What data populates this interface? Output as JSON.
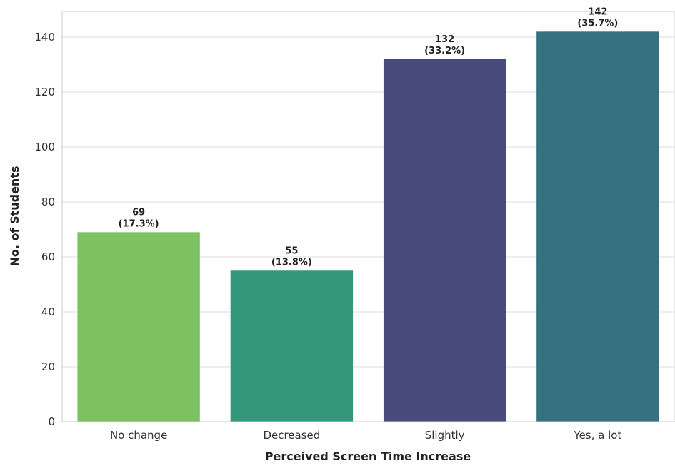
{
  "chart_data": {
    "type": "bar",
    "title": "",
    "xlabel": "Perceived Screen Time Increase",
    "ylabel": "No. of Students",
    "categories": [
      "No change",
      "Decreased",
      "Slightly",
      "Yes, a lot"
    ],
    "values": [
      69,
      55,
      132,
      142
    ],
    "value_labels": [
      "69",
      "55",
      "132",
      "142"
    ],
    "percent_labels": [
      "(17.3%)",
      "(13.8%)",
      "(33.2%)",
      "(35.7%)"
    ],
    "colors": [
      "#7dc260",
      "#35987b",
      "#4a4b7d",
      "#367180"
    ],
    "ylim": [
      0,
      150
    ],
    "yticks": [
      0,
      20,
      40,
      60,
      80,
      100,
      120,
      140
    ],
    "ytick_labels": [
      "0",
      "20",
      "40",
      "60",
      "80",
      "100",
      "120",
      "140"
    ],
    "grid": true,
    "legend": "none"
  }
}
